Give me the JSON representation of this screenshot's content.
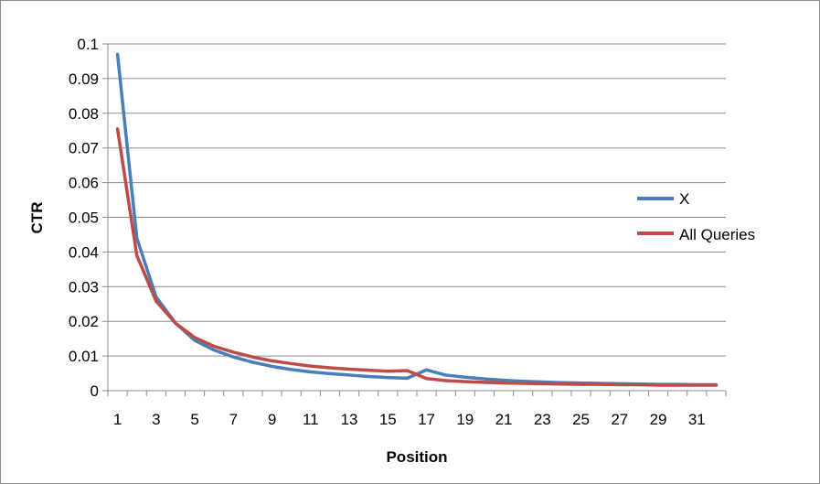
{
  "chart_data": {
    "type": "line",
    "title": "",
    "xlabel": "Position",
    "ylabel": "CTR",
    "x": [
      1,
      2,
      3,
      4,
      5,
      6,
      7,
      8,
      9,
      10,
      11,
      12,
      13,
      14,
      15,
      16,
      17,
      18,
      19,
      20,
      21,
      22,
      23,
      24,
      25,
      26,
      27,
      28,
      29,
      30,
      31,
      32
    ],
    "x_tick_labels": [
      "1",
      "3",
      "5",
      "7",
      "9",
      "11",
      "13",
      "15",
      "17",
      "19",
      "21",
      "23",
      "25",
      "27",
      "29",
      "31"
    ],
    "y_tick_labels": [
      "0",
      "0.01",
      "0.02",
      "0.03",
      "0.04",
      "0.05",
      "0.06",
      "0.07",
      "0.08",
      "0.09",
      "0.1"
    ],
    "ylim": [
      0,
      0.1
    ],
    "grid": true,
    "legend_position": "right",
    "series": [
      {
        "name": "X",
        "color": "#4a7ebb",
        "values": [
          0.097,
          0.044,
          0.027,
          0.0195,
          0.0145,
          0.0117,
          0.0097,
          0.0082,
          0.007,
          0.0061,
          0.0054,
          0.0049,
          0.0045,
          0.0041,
          0.0038,
          0.0036,
          0.006,
          0.0045,
          0.0039,
          0.0034,
          0.003,
          0.0027,
          0.0025,
          0.0023,
          0.0022,
          0.0021,
          0.002,
          0.0019,
          0.0018,
          0.0018,
          0.0017,
          0.0017
        ]
      },
      {
        "name": "All Queries",
        "color": "#be4b48",
        "values": [
          0.0755,
          0.039,
          0.0258,
          0.0195,
          0.0153,
          0.0128,
          0.0111,
          0.0097,
          0.0086,
          0.0078,
          0.0071,
          0.0066,
          0.0062,
          0.0059,
          0.0056,
          0.0058,
          0.0035,
          0.0029,
          0.0026,
          0.0024,
          0.0022,
          0.0021,
          0.002,
          0.0019,
          0.0018,
          0.0018,
          0.0017,
          0.0017,
          0.0016,
          0.0016,
          0.0016,
          0.0016
        ]
      }
    ]
  }
}
